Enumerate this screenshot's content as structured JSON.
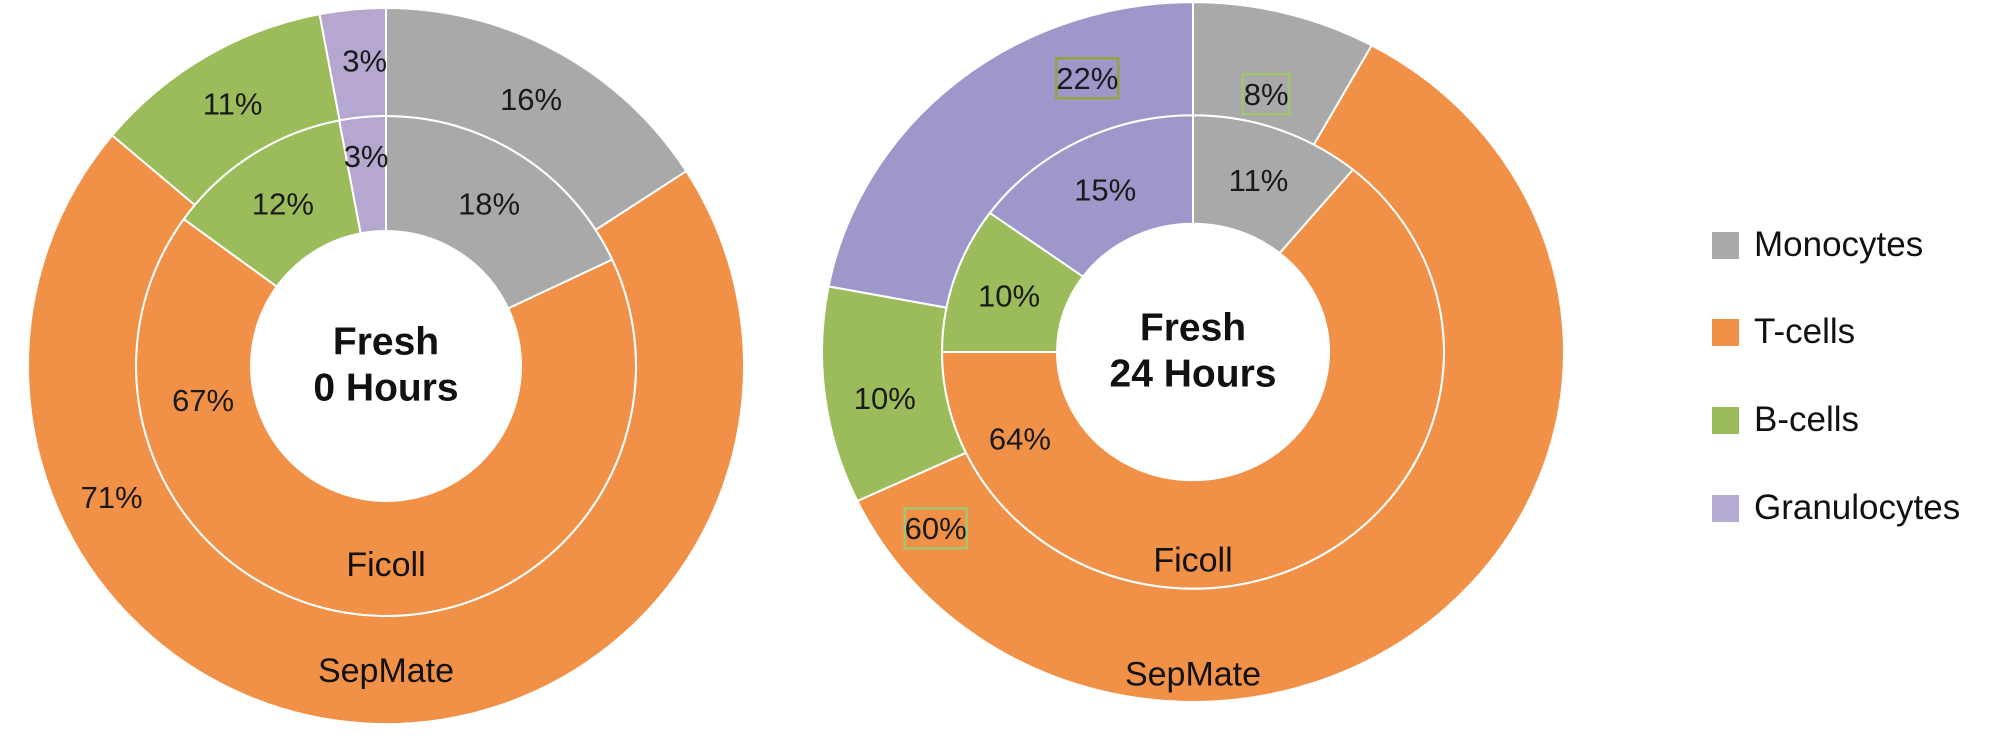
{
  "figure": {
    "description": "Two nested donut charts comparing PBMC composition (Ficoll inner ring vs SepMate outer ring) for fresh blood at 0 and 24 hours"
  },
  "legend": {
    "position": "right",
    "items": [
      {
        "label": "Monocytes",
        "color": "#a9a9a9"
      },
      {
        "label": "T-cells",
        "color": "#f19148"
      },
      {
        "label": "B-cells",
        "color": "#9cbb5a"
      },
      {
        "label": "Granulocytes",
        "color": "#b4aad2"
      }
    ]
  },
  "chart_data": [
    {
      "type": "pie",
      "subtype": "nested-donut",
      "center_label": [
        "Fresh",
        "0 Hours"
      ],
      "categories": [
        "Monocytes",
        "T-cells",
        "B-cells",
        "Granulocytes"
      ],
      "palette": [
        "#a9a9a9",
        "#f19148",
        "#9cbb5a",
        "#b5a7cf"
      ],
      "legend_position": "right",
      "rings": [
        {
          "name": "Ficoll",
          "position": "inner",
          "values": [
            18,
            67,
            12,
            3
          ],
          "labels": [
            "18%",
            "67%",
            "12%",
            "3%"
          ],
          "boxed_labels": []
        },
        {
          "name": "SepMate",
          "position": "outer",
          "values": [
            16,
            71,
            11,
            3
          ],
          "labels": [
            "16%",
            "71%",
            "11%",
            "3%"
          ],
          "boxed_labels": []
        }
      ]
    },
    {
      "type": "pie",
      "subtype": "nested-donut",
      "center_label": [
        "Fresh",
        "24 Hours"
      ],
      "categories": [
        "Monocytes",
        "T-cells",
        "B-cells",
        "Granulocytes"
      ],
      "palette": [
        "#a9a9a9",
        "#f19148",
        "#9cbb5a",
        "#9d97ca"
      ],
      "legend_position": "right",
      "rings": [
        {
          "name": "Ficoll",
          "position": "inner",
          "values": [
            11,
            64,
            10,
            15
          ],
          "labels": [
            "11%",
            "64%",
            "10%",
            "15%"
          ],
          "boxed_labels": []
        },
        {
          "name": "SepMate",
          "position": "outer",
          "values": [
            8,
            60,
            10,
            22
          ],
          "labels": [
            "8%",
            "60%",
            "10%",
            "22%"
          ],
          "boxed_labels": [
            {
              "index": 0,
              "border_color": "#a2c474"
            },
            {
              "index": 1,
              "border_color": "#a2c474"
            },
            {
              "index": 3,
              "border_color": "#93a23f"
            }
          ]
        }
      ]
    }
  ]
}
